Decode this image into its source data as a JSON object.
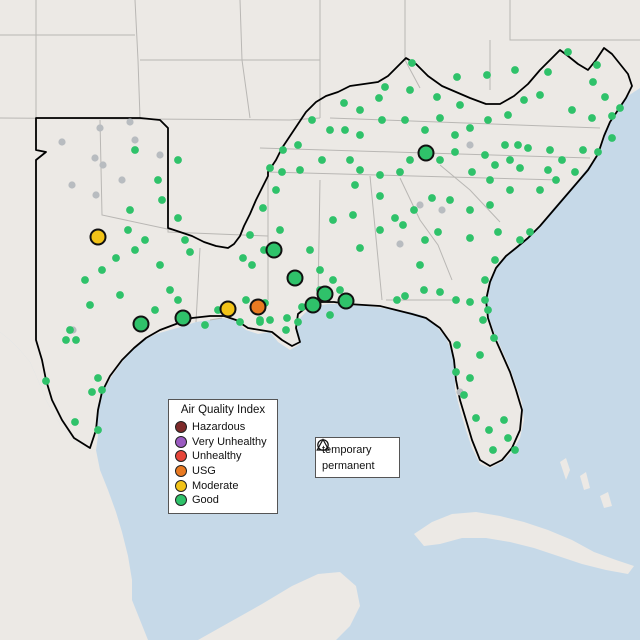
{
  "legend": {
    "title": "Air Quality Index",
    "categories": [
      {
        "label": "Hazardous",
        "color": "#7e2a2a"
      },
      {
        "label": "Very Unhealthy",
        "color": "#9b5bc1"
      },
      {
        "label": "Unhealthy",
        "color": "#e6463a"
      },
      {
        "label": "USG",
        "color": "#e97a22"
      },
      {
        "label": "Moderate",
        "color": "#f2c318"
      },
      {
        "label": "Good",
        "color": "#2fc26a"
      }
    ]
  },
  "type_legend": {
    "temporary": "temporary",
    "permanent": "permanent"
  },
  "colors": {
    "ocean": "#c6d9e8",
    "land": "#ece9e5",
    "border": "#b9b7b4",
    "region_outline": "#000000",
    "inactive_station": "#b8bcc0",
    "good": "#2fc26a",
    "moderate": "#f2c318",
    "usg": "#e97a22"
  }
}
